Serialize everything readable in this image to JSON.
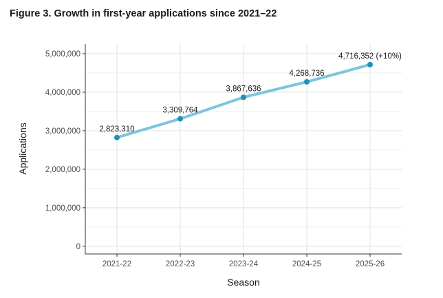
{
  "figure": {
    "title": "Figure 3. Growth in first-year applications since 2021–22"
  },
  "chart_data": {
    "type": "line",
    "title": "Figure 3. Growth in first-year applications since 2021–22",
    "xlabel": "Season",
    "ylabel": "Applications",
    "categories": [
      "2021-22",
      "2022-23",
      "2023-24",
      "2024-25",
      "2025-26"
    ],
    "series": [
      {
        "name": "Applications",
        "values": [
          2823310,
          3309764,
          3867636,
          4268736,
          4716352
        ],
        "labels": [
          "2,823,310",
          "3,309,764",
          "3,867,636",
          "4,268,736",
          "4,716,352 (+10%)"
        ]
      }
    ],
    "ylim": [
      -200000,
      5250000
    ],
    "yticks": [
      0,
      1000000,
      2000000,
      3000000,
      4000000,
      5000000
    ],
    "ytick_labels": [
      "0",
      "1,000,000",
      "2,000,000",
      "3,000,000",
      "4,000,000",
      "5,000,000"
    ],
    "grid": true,
    "colors": {
      "line": "#7ec4de",
      "point": "#1a93b8",
      "grid": "#e5e5e5",
      "axis": "#333333"
    }
  }
}
